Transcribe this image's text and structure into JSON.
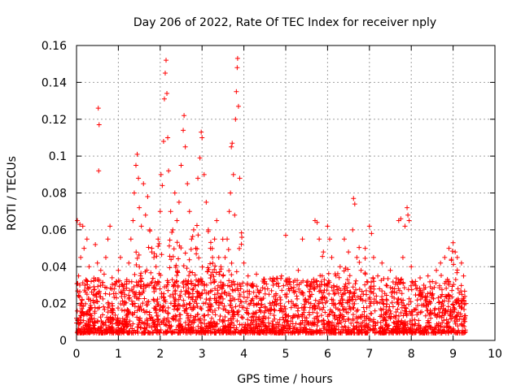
{
  "chart_data": {
    "type": "scatter",
    "title": "Day 206 of 2022, Rate Of TEC Index for receiver nply",
    "xlabel": "GPS time / hours",
    "ylabel": "ROTI / TECUs",
    "xlim": [
      0,
      10
    ],
    "ylim": [
      0,
      0.16
    ],
    "x_ticks": [
      "0",
      "1",
      "2",
      "3",
      "4",
      "5",
      "6",
      "7",
      "8",
      "9",
      "10"
    ],
    "y_ticks": [
      "0",
      "0.02",
      "0.04",
      "0.06",
      "0.08",
      "0.1",
      "0.12",
      "0.14",
      "0.16"
    ],
    "grid": true,
    "marker": "plus",
    "series": [
      {
        "color": "#ff0000",
        "points": [
          [
            0.0,
            0.012
          ],
          [
            0.02,
            0.065
          ],
          [
            0.05,
            0.035
          ],
          [
            0.08,
            0.063
          ],
          [
            0.1,
            0.045
          ],
          [
            0.12,
            0.02
          ],
          [
            0.15,
            0.062
          ],
          [
            0.18,
            0.05
          ],
          [
            0.2,
            0.03
          ],
          [
            0.25,
            0.055
          ],
          [
            0.3,
            0.04
          ],
          [
            0.35,
            0.032
          ],
          [
            0.4,
            0.025
          ],
          [
            0.45,
            0.052
          ],
          [
            0.5,
            0.042
          ],
          [
            0.52,
            0.126
          ],
          [
            0.54,
            0.117
          ],
          [
            0.53,
            0.092
          ],
          [
            0.58,
            0.038
          ],
          [
            0.62,
            0.03
          ],
          [
            0.66,
            0.036
          ],
          [
            0.7,
            0.045
          ],
          [
            0.75,
            0.055
          ],
          [
            0.8,
            0.062
          ],
          [
            0.85,
            0.034
          ],
          [
            0.9,
            0.028
          ],
          [
            0.95,
            0.032
          ],
          [
            1.0,
            0.038
          ],
          [
            1.05,
            0.045
          ],
          [
            1.1,
            0.03
          ],
          [
            1.15,
            0.025
          ],
          [
            1.2,
            0.032
          ],
          [
            1.25,
            0.042
          ],
          [
            1.3,
            0.055
          ],
          [
            1.35,
            0.065
          ],
          [
            1.38,
            0.08
          ],
          [
            1.42,
            0.095
          ],
          [
            1.45,
            0.101
          ],
          [
            1.48,
            0.088
          ],
          [
            1.5,
            0.072
          ],
          [
            1.55,
            0.062
          ],
          [
            1.6,
            0.085
          ],
          [
            1.65,
            0.068
          ],
          [
            1.7,
            0.078
          ],
          [
            1.75,
            0.06
          ],
          [
            1.8,
            0.05
          ],
          [
            1.85,
            0.045
          ],
          [
            1.9,
            0.04
          ],
          [
            1.95,
            0.055
          ],
          [
            2.0,
            0.07
          ],
          [
            2.02,
            0.09
          ],
          [
            2.05,
            0.084
          ],
          [
            2.08,
            0.108
          ],
          [
            2.1,
            0.131
          ],
          [
            2.12,
            0.145
          ],
          [
            2.14,
            0.152
          ],
          [
            2.16,
            0.134
          ],
          [
            2.18,
            0.11
          ],
          [
            2.2,
            0.092
          ],
          [
            2.25,
            0.07
          ],
          [
            2.3,
            0.06
          ],
          [
            2.35,
            0.08
          ],
          [
            2.4,
            0.065
          ],
          [
            2.45,
            0.075
          ],
          [
            2.5,
            0.095
          ],
          [
            2.55,
            0.114
          ],
          [
            2.57,
            0.122
          ],
          [
            2.6,
            0.105
          ],
          [
            2.65,
            0.085
          ],
          [
            2.7,
            0.07
          ],
          [
            2.75,
            0.055
          ],
          [
            2.8,
            0.06
          ],
          [
            2.85,
            0.05
          ],
          [
            2.9,
            0.088
          ],
          [
            2.95,
            0.099
          ],
          [
            2.98,
            0.113
          ],
          [
            3.0,
            0.11
          ],
          [
            3.05,
            0.09
          ],
          [
            3.1,
            0.075
          ],
          [
            3.15,
            0.06
          ],
          [
            3.2,
            0.05
          ],
          [
            3.25,
            0.045
          ],
          [
            3.3,
            0.055
          ],
          [
            3.35,
            0.065
          ],
          [
            3.4,
            0.045
          ],
          [
            3.45,
            0.04
          ],
          [
            3.5,
            0.035
          ],
          [
            3.55,
            0.045
          ],
          [
            3.6,
            0.055
          ],
          [
            3.65,
            0.07
          ],
          [
            3.68,
            0.08
          ],
          [
            3.7,
            0.105
          ],
          [
            3.72,
            0.107
          ],
          [
            3.75,
            0.09
          ],
          [
            3.78,
            0.068
          ],
          [
            3.8,
            0.12
          ],
          [
            3.82,
            0.135
          ],
          [
            3.84,
            0.148
          ],
          [
            3.85,
            0.153
          ],
          [
            3.87,
            0.127
          ],
          [
            3.9,
            0.088
          ],
          [
            3.95,
            0.056
          ],
          [
            4.0,
            0.042
          ],
          [
            4.1,
            0.035
          ],
          [
            4.2,
            0.03
          ],
          [
            4.3,
            0.036
          ],
          [
            4.4,
            0.027
          ],
          [
            4.5,
            0.032
          ],
          [
            4.6,
            0.025
          ],
          [
            4.7,
            0.03
          ],
          [
            4.8,
            0.022
          ],
          [
            4.9,
            0.035
          ],
          [
            5.0,
            0.057
          ],
          [
            5.1,
            0.032
          ],
          [
            5.2,
            0.026
          ],
          [
            5.3,
            0.038
          ],
          [
            5.4,
            0.055
          ],
          [
            5.5,
            0.03
          ],
          [
            5.6,
            0.02
          ],
          [
            5.7,
            0.065
          ],
          [
            5.75,
            0.064
          ],
          [
            5.8,
            0.055
          ],
          [
            5.9,
            0.048
          ],
          [
            6.0,
            0.062
          ],
          [
            6.05,
            0.055
          ],
          [
            6.1,
            0.045
          ],
          [
            6.2,
            0.035
          ],
          [
            6.3,
            0.04
          ],
          [
            6.4,
            0.055
          ],
          [
            6.5,
            0.048
          ],
          [
            6.6,
            0.06
          ],
          [
            6.62,
            0.077
          ],
          [
            6.65,
            0.074
          ],
          [
            6.7,
            0.045
          ],
          [
            6.8,
            0.038
          ],
          [
            6.9,
            0.05
          ],
          [
            7.0,
            0.062
          ],
          [
            7.05,
            0.058
          ],
          [
            7.1,
            0.045
          ],
          [
            7.2,
            0.035
          ],
          [
            7.3,
            0.042
          ],
          [
            7.4,
            0.03
          ],
          [
            7.5,
            0.038
          ],
          [
            7.6,
            0.028
          ],
          [
            7.7,
            0.065
          ],
          [
            7.75,
            0.066
          ],
          [
            7.8,
            0.045
          ],
          [
            7.85,
            0.062
          ],
          [
            7.9,
            0.072
          ],
          [
            7.92,
            0.068
          ],
          [
            7.95,
            0.065
          ],
          [
            8.0,
            0.04
          ],
          [
            8.1,
            0.032
          ],
          [
            8.2,
            0.025
          ],
          [
            8.3,
            0.03
          ],
          [
            8.4,
            0.035
          ],
          [
            8.5,
            0.028
          ],
          [
            8.6,
            0.038
          ],
          [
            8.7,
            0.042
          ],
          [
            8.8,
            0.045
          ],
          [
            8.9,
            0.05
          ],
          [
            9.0,
            0.053
          ],
          [
            9.05,
            0.048
          ],
          [
            9.1,
            0.045
          ],
          [
            9.2,
            0.042
          ],
          [
            9.25,
            0.035
          ],
          [
            9.3,
            0.02
          ]
        ]
      }
    ]
  }
}
